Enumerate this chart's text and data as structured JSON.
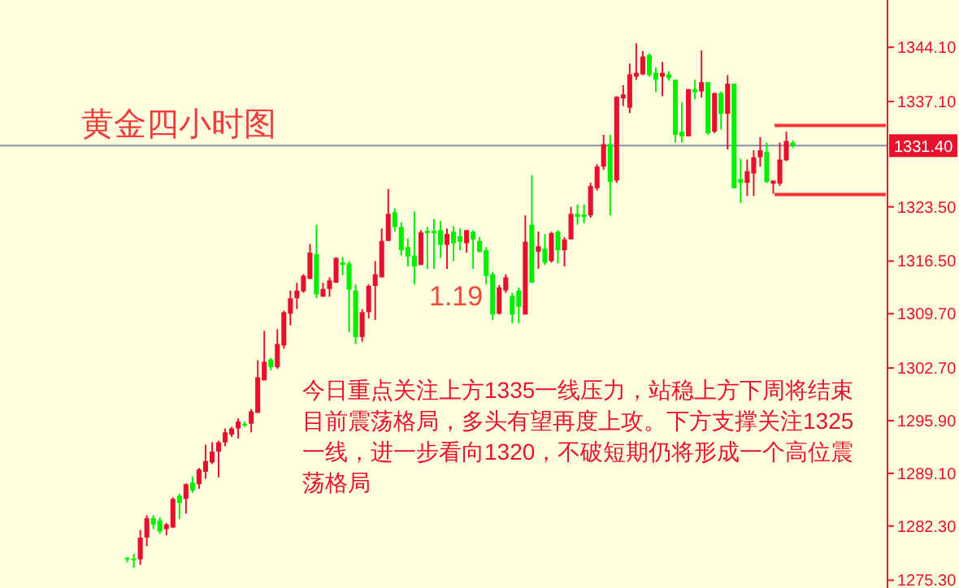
{
  "chart_data": {
    "type": "candlestick",
    "title": "黄金四小时图",
    "annotations": [
      "今日重点关注上方1335一线压力，站稳上方下周将结束目前震荡格局，多头有望再度上攻。下方支撑关注1325一线，进一步看向1320，不破短期仍将形成一个高位震荡格局",
      "1.19"
    ],
    "categories": [
      null,
      null,
      null,
      null,
      null,
      null,
      null,
      null,
      null,
      null,
      null,
      null,
      null,
      null,
      null,
      null,
      null,
      null,
      null,
      null,
      null,
      null,
      null,
      null,
      null,
      null,
      null,
      null,
      null,
      null,
      null,
      null,
      null,
      null,
      null,
      null,
      null,
      null,
      null,
      null,
      null,
      null,
      null,
      null,
      null,
      null,
      null,
      null,
      null,
      null,
      null,
      null,
      null,
      null,
      null,
      null,
      null,
      null,
      null,
      null,
      null,
      null,
      null,
      null,
      null,
      null,
      null,
      null,
      null,
      null,
      null,
      null,
      null,
      null,
      null,
      null,
      null,
      null,
      null,
      null,
      null,
      null,
      null,
      null,
      null,
      null,
      null,
      null,
      null,
      null,
      null,
      null,
      null,
      null,
      null,
      null,
      null,
      null,
      null,
      null,
      null,
      null,
      null,
      null,
      null,
      null,
      null,
      null,
      null,
      null,
      null,
      null,
      null,
      null,
      null,
      null,
      null,
      null,
      null,
      null,
      null,
      null,
      null,
      null,
      null,
      null,
      null,
      null,
      null,
      null,
      null,
      null,
      null,
      null,
      null,
      null
    ],
    "ohlc": [
      null,
      null,
      null,
      null,
      null,
      null,
      null,
      null,
      null,
      null,
      null,
      null,
      null,
      null,
      null,
      null,
      null,
      null,
      null,
      [
        1278.2,
        1278.3,
        1277.6,
        1278.0
      ],
      [
        1278.1,
        1278.7,
        1276.9,
        1277.9
      ],
      [
        1278.0,
        1281.8,
        1277.3,
        1280.8
      ],
      [
        1280.8,
        1283.7,
        1279.7,
        1283.3
      ],
      [
        1283.3,
        1283.7,
        1281.9,
        1282.5
      ],
      [
        1283.0,
        1283.4,
        1281.3,
        1281.6
      ],
      [
        1281.9,
        1282.7,
        1281.1,
        1282.5
      ],
      [
        1282.1,
        1286.0,
        1282.1,
        1285.8
      ],
      [
        1286.2,
        1286.5,
        1283.2,
        1285.3
      ],
      [
        1285.8,
        1287.8,
        1283.9,
        1287.7
      ],
      [
        1287.9,
        1288.7,
        1286.6,
        1286.9
      ],
      [
        1287.7,
        1289.8,
        1287.1,
        1289.6
      ],
      [
        1289.3,
        1292.8,
        1288.4,
        1290.7
      ],
      [
        1290.5,
        1293.1,
        1290.3,
        1291.9
      ],
      [
        1291.9,
        1293.3,
        1288.6,
        1293.1
      ],
      [
        1293.1,
        1294.9,
        1292.6,
        1294.4
      ],
      [
        1294.1,
        1295.1,
        1293.8,
        1294.9
      ],
      [
        1294.9,
        1296.2,
        1293.6,
        1295.8
      ],
      [
        1295.5,
        1295.8,
        1295.1,
        1295.4
      ],
      [
        1295.5,
        1297.4,
        1294.4,
        1297.1
      ],
      [
        1296.9,
        1303.7,
        1296.9,
        1301.5
      ],
      [
        1301.1,
        1307.5,
        1301.1,
        1303.5
      ],
      [
        1303.8,
        1304.0,
        1302.4,
        1302.8
      ],
      [
        1302.8,
        1307.7,
        1302.6,
        1305.8
      ],
      [
        1305.6,
        1310.1,
        1305.2,
        1309.9
      ],
      [
        1309.7,
        1312.7,
        1308.2,
        1311.7
      ],
      [
        1311.7,
        1313.7,
        1310.3,
        1312.7
      ],
      [
        1312.6,
        1314.8,
        1312.4,
        1314.6
      ],
      [
        1314.2,
        1318.7,
        1314.2,
        1317.6
      ],
      [
        1317.4,
        1321.2,
        1311.7,
        1312.2
      ],
      [
        1311.9,
        1313.7,
        1311.9,
        1312.9
      ],
      [
        1312.9,
        1314.4,
        1311.9,
        1314.0
      ],
      [
        1313.7,
        1317.0,
        1313.7,
        1316.9
      ],
      [
        1316.3,
        1317.0,
        1314.7,
        1316.0
      ],
      [
        1316.2,
        1316.5,
        1307.3,
        1312.8
      ],
      [
        1312.7,
        1313.5,
        1305.8,
        1306.7
      ],
      [
        1306.7,
        1310.3,
        1306.1,
        1309.9
      ],
      [
        1309.9,
        1313.5,
        1309.1,
        1313.3
      ],
      [
        1313.3,
        1316.5,
        1308.9,
        1314.8
      ],
      [
        1314.4,
        1320.7,
        1314.4,
        1319.1
      ],
      [
        1319.1,
        1325.8,
        1319.1,
        1322.6
      ],
      [
        1322.8,
        1323.3,
        1320.3,
        1320.9
      ],
      [
        1320.9,
        1321.5,
        1317.2,
        1317.9
      ],
      [
        1318.3,
        1319.4,
        1315.8,
        1317.1
      ],
      [
        1317.2,
        1322.9,
        1313.5,
        1315.8
      ],
      [
        1316.0,
        1320.5,
        1316.0,
        1320.2
      ],
      [
        1320.4,
        1320.9,
        1315.5,
        1320.1
      ],
      [
        1320.4,
        1321.9,
        1315.5,
        1320.1
      ],
      [
        1320.5,
        1321.7,
        1316.9,
        1318.6
      ],
      [
        1318.6,
        1320.7,
        1315.5,
        1320.0
      ],
      [
        1320.3,
        1321.0,
        1316.5,
        1318.8
      ],
      [
        1319.7,
        1320.7,
        1317.9,
        1319.0
      ],
      [
        1318.8,
        1320.5,
        1317.6,
        1320.5
      ],
      [
        1320.3,
        1320.5,
        1315.5,
        1319.3
      ],
      [
        1319.1,
        1319.6,
        1317.6,
        1317.7
      ],
      [
        1317.9,
        1318.3,
        1313.5,
        1314.6
      ],
      [
        1314.8,
        1315.1,
        1308.9,
        1309.6
      ],
      [
        1309.7,
        1313.4,
        1309.6,
        1313.1
      ],
      [
        1312.7,
        1314.8,
        1312.4,
        1314.4
      ],
      [
        1312.0,
        1312.4,
        1308.5,
        1309.6
      ],
      [
        1312.7,
        1313.1,
        1308.5,
        1310.6
      ],
      [
        1309.6,
        1322.4,
        1309.6,
        1319.0
      ],
      [
        1321.2,
        1327.6,
        1313.7,
        1313.7
      ],
      [
        1317.7,
        1320.3,
        1315.5,
        1318.4
      ],
      [
        1318.1,
        1320.0,
        1316.0,
        1316.3
      ],
      [
        1316.5,
        1320.3,
        1316.3,
        1320.1
      ],
      [
        1320.3,
        1320.5,
        1316.2,
        1317.9
      ],
      [
        1317.9,
        1319.6,
        1315.8,
        1319.3
      ],
      [
        1319.3,
        1323.5,
        1319.3,
        1322.6
      ],
      [
        1322.6,
        1323.8,
        1321.2,
        1322.2
      ],
      [
        1322.5,
        1323.8,
        1321.4,
        1322.2
      ],
      [
        1322.4,
        1326.6,
        1322.1,
        1326.2
      ],
      [
        1325.9,
        1329.0,
        1325.6,
        1328.7
      ],
      [
        1328.7,
        1332.8,
        1328.3,
        1331.6
      ],
      [
        1331.6,
        1332.8,
        1322.4,
        1326.7
      ],
      [
        1326.9,
        1337.8,
        1326.6,
        1337.7
      ],
      [
        1337.5,
        1339.2,
        1336.5,
        1338.0
      ],
      [
        1336.3,
        1342.0,
        1335.6,
        1340.6
      ],
      [
        1340.3,
        1344.6,
        1339.9,
        1340.8
      ],
      [
        1340.6,
        1343.6,
        1340.5,
        1342.9
      ],
      [
        1343.1,
        1343.3,
        1340.3,
        1340.5
      ],
      [
        1340.8,
        1341.5,
        1338.3,
        1339.9
      ],
      [
        1340.3,
        1342.2,
        1337.8,
        1340.8
      ],
      [
        1340.6,
        1341.0,
        1339.8,
        1340.1
      ],
      [
        1339.9,
        1339.9,
        1331.8,
        1332.8
      ],
      [
        1333.2,
        1337.0,
        1331.8,
        1332.6
      ],
      [
        1332.6,
        1338.7,
        1332.6,
        1338.7
      ],
      [
        1338.7,
        1339.9,
        1337.4,
        1338.3
      ],
      [
        1338.4,
        1343.7,
        1337.6,
        1339.6
      ],
      [
        1339.6,
        1339.6,
        1332.8,
        1333.0
      ],
      [
        1333.2,
        1338.2,
        1333.0,
        1338.2
      ],
      [
        1338.2,
        1338.4,
        1333.5,
        1335.5
      ],
      [
        1335.5,
        1340.5,
        1330.9,
        1339.4
      ],
      [
        1339.4,
        1339.4,
        1325.9,
        1325.9
      ],
      [
        1327.1,
        1329.7,
        1324.0,
        1326.6
      ],
      [
        1326.6,
        1329.6,
        1324.9,
        1328.1
      ],
      [
        1327.8,
        1330.8,
        1324.9,
        1329.9
      ],
      [
        1329.9,
        1332.5,
        1328.7,
        1330.8
      ],
      [
        1330.6,
        1331.8,
        1326.6,
        1326.7
      ],
      [
        1326.5,
        1326.9,
        1325.2,
        1326.9
      ],
      [
        1326.5,
        1331.8,
        1326.2,
        1329.6
      ],
      [
        1329.5,
        1333.2,
        1329.4,
        1332.0
      ],
      [
        1331.8,
        1332.1,
        1331.1,
        1331.4
      ],
      null,
      null,
      null,
      null,
      null,
      null,
      null,
      null,
      null,
      null,
      null,
      null,
      null,
      null
    ],
    "colors": [
      null,
      null,
      null,
      null,
      null,
      null,
      null,
      null,
      null,
      null,
      null,
      null,
      null,
      null,
      null,
      null,
      null,
      null,
      null,
      "#00ee00",
      "#00ee00",
      "#e8112d",
      "#e8112d",
      "#00ee00",
      "#00ee00",
      "#e8112d",
      "#e8112d",
      "#00ee00",
      "#e8112d",
      "#00ee00",
      "#e8112d",
      "#e8112d",
      "#e8112d",
      "#e8112d",
      "#e8112d",
      "#e8112d",
      "#e8112d",
      "#00ee00",
      "#e8112d",
      "#e8112d",
      "#e8112d",
      "#00ee00",
      "#e8112d",
      "#e8112d",
      "#e8112d",
      "#e8112d",
      "#e8112d",
      "#e8112d",
      "#00ee00",
      "#e8112d",
      "#e8112d",
      "#e8112d",
      "#00ee00",
      "#00ee00",
      "#00ee00",
      "#e8112d",
      "#e8112d",
      "#e8112d",
      "#e8112d",
      "#e8112d",
      "#00ee00",
      "#00ee00",
      "#00ee00",
      "#00ee00",
      "#e8112d",
      "#00ee00",
      "#00ee00",
      "#00ee00",
      "#e8112d",
      "#00ee00",
      "#00ee00",
      "#e8112d",
      "#00ee00",
      "#00ee00",
      "#00ee00",
      "#00ee00",
      "#e8112d",
      "#e8112d",
      "#00ee00",
      "#00ee00",
      "#e8112d",
      "#00ee00",
      "#e8112d",
      "#00ee00",
      "#e8112d",
      "#00ee00",
      "#e8112d",
      "#e8112d",
      "#00ee00",
      "#00ee00",
      "#e8112d",
      "#e8112d",
      "#e8112d",
      "#00ee00",
      "#e8112d",
      "#e8112d",
      "#e8112d",
      "#e8112d",
      "#e8112d",
      "#00ee00",
      "#00ee00",
      "#e8112d",
      "#00ee00",
      "#00ee00",
      "#00ee00",
      "#e8112d",
      "#00ee00",
      "#e8112d",
      "#00ee00",
      "#e8112d",
      "#00ee00",
      "#e8112d",
      "#00ee00",
      "#00ee00",
      "#e8112d",
      "#e8112d",
      "#e8112d",
      "#00ee00",
      "#e8112d",
      "#e8112d",
      "#e8112d",
      "#00ee00",
      null,
      null,
      null,
      null,
      null,
      null,
      null,
      null,
      null,
      null,
      null,
      null,
      null,
      null
    ],
    "ylim": [
      1274.3,
      1350.2
    ],
    "yticks": [
      {
        "value": 1344.1,
        "label": "1344.10"
      },
      {
        "value": 1337.1,
        "label": "1337.10"
      },
      {
        "value": 1323.5,
        "label": "1323.50"
      },
      {
        "value": 1316.5,
        "label": "1316.50"
      },
      {
        "value": 1309.7,
        "label": "1309.70"
      },
      {
        "value": 1302.7,
        "label": "1302.70"
      },
      {
        "value": 1295.9,
        "label": "1295.90"
      },
      {
        "value": 1289.1,
        "label": "1289.10"
      },
      {
        "value": 1282.3,
        "label": "1282.30"
      },
      {
        "value": 1275.3,
        "label": "1275.30"
      }
    ],
    "ref_lines": [
      {
        "axis": "y",
        "value": 1331.4,
        "label": "1331.40",
        "color": "#7f8fa6"
      },
      {
        "axis": "y",
        "value": 1334.0,
        "color": "#ff3333"
      },
      {
        "axis": "y",
        "value": 1325.1,
        "color": "#ff3333"
      }
    ],
    "tick_labels": "y",
    "grid": false
  }
}
